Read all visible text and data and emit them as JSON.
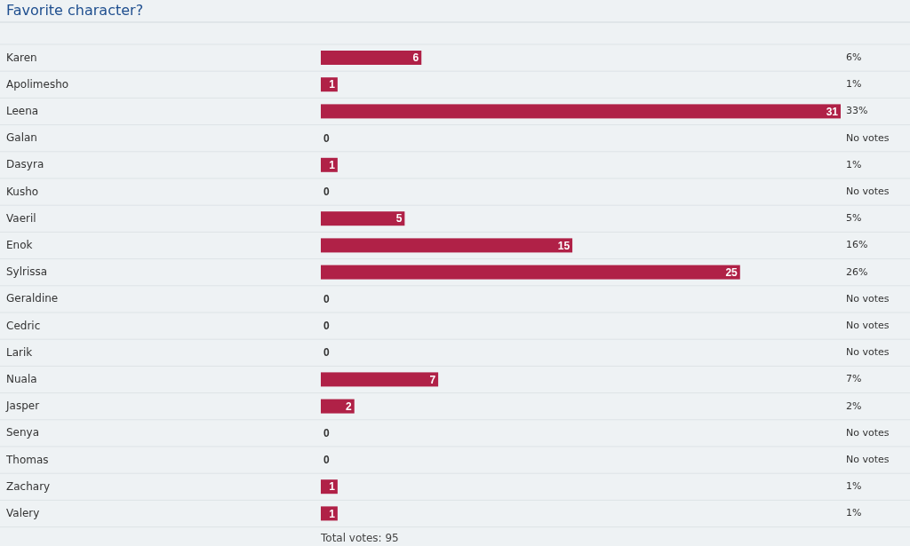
{
  "chart_data": {
    "type": "bar",
    "orientation": "horizontal",
    "title": "Favorite character?",
    "categories": [
      "Karen",
      "Apolimesho",
      "Leena",
      "Galan",
      "Dasyra",
      "Kusho",
      "Vaeril",
      "Enok",
      "Sylrissa",
      "Geraldine",
      "Cedric",
      "Larik",
      "Nuala",
      "Jasper",
      "Senya",
      "Thomas",
      "Zachary",
      "Valery"
    ],
    "values": [
      6,
      1,
      31,
      0,
      1,
      0,
      5,
      15,
      25,
      0,
      0,
      0,
      7,
      2,
      0,
      0,
      1,
      1
    ],
    "color": "#b02147",
    "data_labels": true,
    "grid": "y",
    "annotations": [
      "6%",
      "1%",
      "33%",
      "No votes",
      "1%",
      "No votes",
      "5%",
      "16%",
      "26%",
      "No votes",
      "No votes",
      "No votes",
      "7%",
      "2%",
      "No votes",
      "No votes",
      "1%",
      "1%",
      "Total votes: 95"
    ]
  }
}
